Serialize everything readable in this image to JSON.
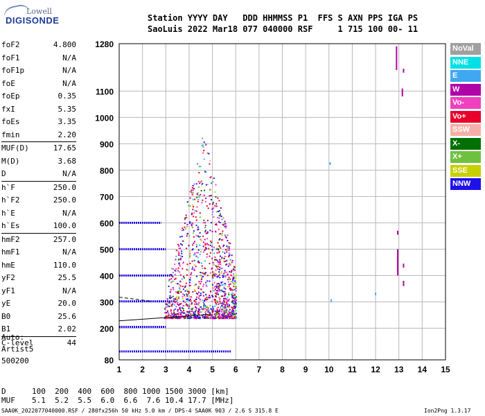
{
  "logo": {
    "line1": "Lowell",
    "line2": "DIGISONDE"
  },
  "header": {
    "row1": "Station YYYY DAY   DDD HHMMSS P1  FFS S AXN PPS IGA PS",
    "row2": "SaoLuis 2022 Mar18 077 040000 RSF     1 715 100 00- 11"
  },
  "params": [
    {
      "group": [
        {
          "name": "foF2",
          "value": "4.800"
        },
        {
          "name": "foF1",
          "value": "N/A"
        },
        {
          "name": "foF1p",
          "value": "N/A"
        },
        {
          "name": "foE",
          "value": "N/A"
        },
        {
          "name": "foEp",
          "value": "0.35"
        },
        {
          "name": "fxI",
          "value": "5.35"
        },
        {
          "name": "foEs",
          "value": "3.35"
        },
        {
          "name": "fmin",
          "value": "2.20"
        }
      ]
    },
    {
      "group": [
        {
          "name": "MUF(D)",
          "value": "17.65"
        },
        {
          "name": "M(D)",
          "value": "3.68"
        },
        {
          "name": "D",
          "value": "N/A"
        }
      ]
    },
    {
      "group": [
        {
          "name": "h`F",
          "value": "250.0"
        },
        {
          "name": "h`F2",
          "value": "250.0"
        },
        {
          "name": "h`E",
          "value": "N/A"
        },
        {
          "name": "h`Es",
          "value": "100.0"
        }
      ]
    },
    {
      "group": [
        {
          "name": "hmF2",
          "value": "257.0"
        },
        {
          "name": "hmF1",
          "value": "N/A"
        },
        {
          "name": "hmE",
          "value": "110.0"
        },
        {
          "name": "yF2",
          "value": "25.5"
        },
        {
          "name": "yF1",
          "value": "N/A"
        },
        {
          "name": "yE",
          "value": "20.0"
        },
        {
          "name": "B0",
          "value": "25.6"
        },
        {
          "name": "B1",
          "value": "2.02"
        }
      ]
    },
    {
      "group": [
        {
          "name": "C-level",
          "value": "44"
        }
      ]
    }
  ],
  "auto": {
    "line1": "Auto:",
    "line2": "Artist5",
    "line3": "500200"
  },
  "muf_table": {
    "d_label": "D",
    "d_values": "100  200  400  600  800 1000 1500 3000 [km]",
    "muf_label": "MUF",
    "muf_values": "5.1  5.2  5.5  6.0  6.6  7.6 10.4 17.7 [MHz]"
  },
  "footer": {
    "left": "SAA0K_2022077040000.RSF / 280fx256h 50 kHz 5.0 km / DPS-4 SAA0K 903 / 2.6 S 315.8 E",
    "right": "Ion2Png 1.3.17"
  },
  "legend": [
    {
      "label": "NoVal",
      "color": "#a0a0a0"
    },
    {
      "label": "NNE",
      "color": "#00e0e8"
    },
    {
      "label": "E",
      "color": "#40a8f0"
    },
    {
      "label": "W",
      "color": "#b000a8"
    },
    {
      "label": "Vo-",
      "color": "#f040c0"
    },
    {
      "label": "Vo+",
      "color": "#e8002a"
    },
    {
      "label": "SSW",
      "color": "#f4b0a8"
    },
    {
      "label": "X-",
      "color": "#007000"
    },
    {
      "label": "X+",
      "color": "#70c040"
    },
    {
      "label": "SSE",
      "color": "#c8d000"
    },
    {
      "label": "NNW",
      "color": "#2010e8"
    }
  ],
  "chart_data": {
    "type": "scatter",
    "xlim": [
      1,
      15
    ],
    "ylim": [
      80,
      1280
    ],
    "x_ticks": [
      "1",
      "2",
      "3",
      "4",
      "5",
      "6",
      "7",
      "8",
      "9",
      "10",
      "11",
      "12",
      "13",
      "14",
      "15"
    ],
    "y_ticks": [
      "80",
      "200",
      "300",
      "400",
      "500",
      "600",
      "700",
      "800",
      "900",
      "1000",
      "1100",
      "1280"
    ],
    "grid": true,
    "traces": [
      {
        "name": "E-layer echo",
        "color": "#2010e8",
        "x": [
          1.0,
          3.0
        ],
        "y": [
          205,
          205
        ]
      },
      {
        "name": "low echo",
        "color": "#2010e8",
        "x": [
          1.0,
          5.8
        ],
        "y": [
          112,
          112
        ]
      },
      {
        "name": "Es 300",
        "color": "#2010e8",
        "x": [
          1.0,
          3.4
        ],
        "y": [
          302,
          302
        ]
      },
      {
        "name": "Es 400",
        "color": "#2010e8",
        "x": [
          1.0,
          3.3
        ],
        "y": [
          400,
          400
        ]
      },
      {
        "name": "Es 500",
        "color": "#2010e8",
        "x": [
          1.0,
          3.0
        ],
        "y": [
          500,
          500
        ]
      },
      {
        "name": "Es 600",
        "color": "#2010e8",
        "x": [
          1.0,
          2.8
        ],
        "y": [
          600,
          600
        ]
      }
    ],
    "cluster": {
      "x_range": [
        2.9,
        6.0
      ],
      "y_range": [
        240,
        950
      ]
    },
    "fixed_marks": [
      {
        "x": 12.9,
        "y1": 1180,
        "y2": 1270,
        "color": "#b000a8"
      },
      {
        "x": 13.15,
        "y1": 1080,
        "y2": 1110,
        "color": "#b000a8"
      },
      {
        "x": 13.2,
        "y1": 1170,
        "y2": 1185,
        "color": "#b000a8"
      },
      {
        "x": 12.95,
        "y1": 400,
        "y2": 500,
        "color": "#b000a8"
      },
      {
        "x": 13.2,
        "y1": 360,
        "y2": 380,
        "color": "#b000a8"
      },
      {
        "x": 13.2,
        "y1": 430,
        "y2": 445,
        "color": "#b000a8"
      },
      {
        "x": 12.95,
        "y1": 555,
        "y2": 570,
        "color": "#b000a8"
      },
      {
        "x": 10.05,
        "y1": 820,
        "y2": 830,
        "color": "#40a8f0"
      },
      {
        "x": 10.1,
        "y1": 300,
        "y2": 310,
        "color": "#40a8f0"
      },
      {
        "x": 12.0,
        "y1": 325,
        "y2": 335,
        "color": "#40a8f0"
      }
    ],
    "profile_lines": [
      {
        "x": [
          1.0,
          4.8
        ],
        "y": [
          228,
          252
        ],
        "color": "#000000",
        "dash": false
      },
      {
        "x": [
          1.0,
          2.4
        ],
        "y": [
          318,
          302
        ],
        "color": "#000000",
        "dash": true
      }
    ]
  }
}
